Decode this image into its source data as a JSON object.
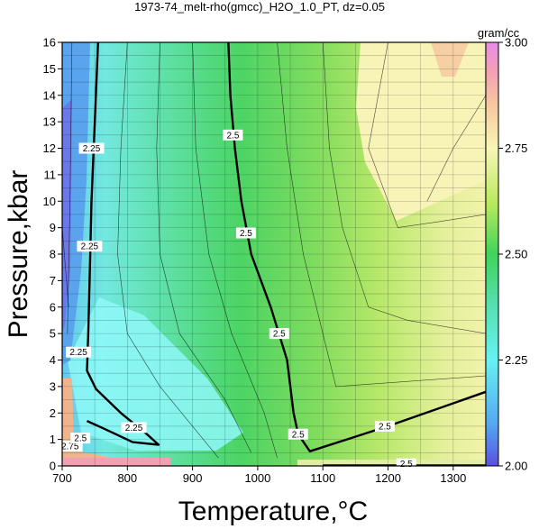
{
  "chart_data": {
    "type": "heatmap",
    "title": "1973-74_melt-rho(gmcc)_H2O_1.0_PT, dz=0.05",
    "xlabel": "Temperature,°C",
    "ylabel": "Pressure,kbar",
    "xlim": [
      700,
      1350
    ],
    "ylim": [
      0,
      16
    ],
    "xticks": [
      700,
      800,
      900,
      1000,
      1100,
      1200,
      1300
    ],
    "yticks": [
      0,
      1,
      2,
      3,
      4,
      5,
      6,
      7,
      8,
      9,
      10,
      11,
      12,
      13,
      14,
      15,
      16
    ],
    "grid": true,
    "colorbar": {
      "unit": "gram/cc",
      "range": [
        2.0,
        3.0
      ],
      "ticks": [
        "2.00",
        "2.25",
        "2.50",
        "2.75",
        "3.00"
      ],
      "stops": [
        {
          "v": 2.0,
          "color": "#5a4fe0"
        },
        {
          "v": 2.1,
          "color": "#55a8f2"
        },
        {
          "v": 2.25,
          "color": "#66f2f2"
        },
        {
          "v": 2.38,
          "color": "#55e0b0"
        },
        {
          "v": 2.5,
          "color": "#3fd45a"
        },
        {
          "v": 2.62,
          "color": "#b8ea5c"
        },
        {
          "v": 2.75,
          "color": "#f8f6b4"
        },
        {
          "v": 2.85,
          "color": "#f8c8a0"
        },
        {
          "v": 2.93,
          "color": "#f4a0b4"
        },
        {
          "v": 3.0,
          "color": "#ea8ce6"
        }
      ]
    },
    "contours": [
      {
        "level": 2.25,
        "points": [
          [
            755,
            16
          ],
          [
            750,
            13
          ],
          [
            745,
            10
          ],
          [
            742,
            7
          ],
          [
            740,
            5
          ],
          [
            738,
            3.6
          ],
          [
            752,
            2.9
          ],
          [
            790,
            2.0
          ],
          [
            830,
            1.2
          ],
          [
            848,
            0.8
          ],
          [
            808,
            0.9
          ],
          [
            765,
            1.4
          ],
          [
            738,
            1.7
          ]
        ]
      },
      {
        "level": 2.5,
        "points": [
          [
            955,
            16
          ],
          [
            958,
            14
          ],
          [
            965,
            12
          ],
          [
            975,
            10
          ],
          [
            990,
            8
          ],
          [
            1020,
            6
          ],
          [
            1045,
            4
          ],
          [
            1055,
            2
          ],
          [
            1062,
            1.2
          ],
          [
            1080,
            0.55
          ],
          [
            1200,
            1.5
          ],
          [
            1350,
            2.8
          ]
        ]
      },
      {
        "level": 2.5,
        "points": [
          [
            1100,
            0.02
          ],
          [
            1350,
            0.02
          ]
        ]
      }
    ],
    "contour_labels": [
      {
        "text": "2.25",
        "x": 745,
        "y": 12.0
      },
      {
        "text": "2.25",
        "x": 742,
        "y": 8.3
      },
      {
        "text": "2.25",
        "x": 725,
        "y": 4.3
      },
      {
        "text": "2.25",
        "x": 810,
        "y": 1.45
      },
      {
        "text": "2.5",
        "x": 962,
        "y": 12.5
      },
      {
        "text": "2.5",
        "x": 982,
        "y": 8.8
      },
      {
        "text": "2.5",
        "x": 1033,
        "y": 5.0
      },
      {
        "text": "2.5",
        "x": 1062,
        "y": 1.2
      },
      {
        "text": "2.5",
        "x": 1195,
        "y": 1.5
      },
      {
        "text": "2.5",
        "x": 1228,
        "y": 0.08
      },
      {
        "text": "2.75",
        "x": 712,
        "y": 0.75
      },
      {
        "text": "2.5",
        "x": 728,
        "y": 1.05
      }
    ]
  }
}
